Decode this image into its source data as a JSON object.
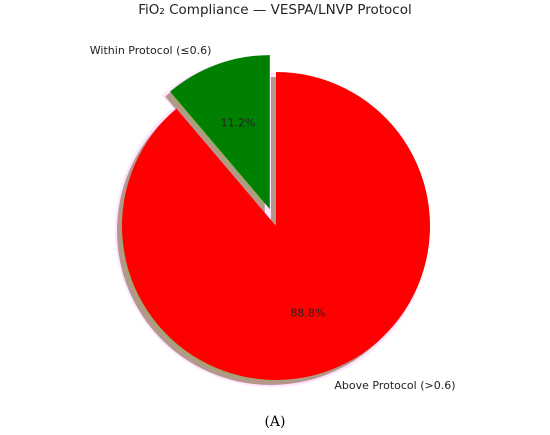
{
  "chart_data": {
    "type": "pie",
    "title": "FiO₂ Compliance — VESPA/LNVP Protocol",
    "categories": [
      "Within Protocol (≤0.6)",
      "Above Protocol (>0.6)"
    ],
    "values": [
      11.2,
      88.8
    ],
    "value_labels": [
      "11.2%",
      "88.8%"
    ],
    "colors": [
      "#008000",
      "#ff0000"
    ],
    "explode": [
      true,
      false
    ],
    "start_angle": 90,
    "direction": "counterclockwise",
    "shadow": true,
    "legend": "none"
  },
  "panel_label": "(A)"
}
